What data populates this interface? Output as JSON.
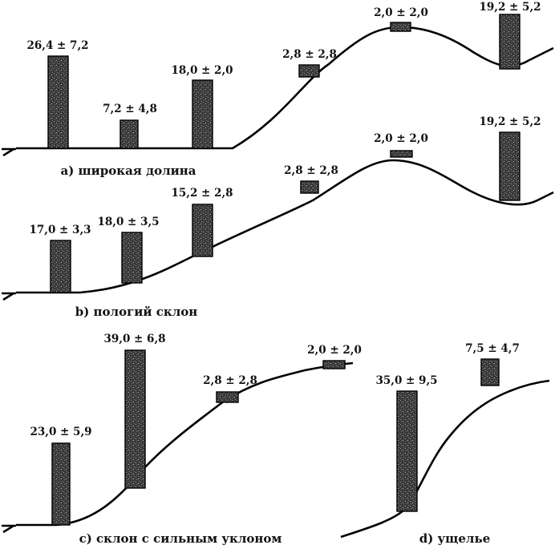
{
  "panels": [
    {
      "id": "a",
      "caption": "a) широкая долина",
      "values": [
        "26,4 ± 7,2",
        "7,2 ± 4,8",
        "18,0 ± 2,0",
        "2,8 ± 2,8",
        "2,0 ± 2,0",
        "19,2 ± 5,2"
      ]
    },
    {
      "id": "b",
      "caption": "b) пологий склон",
      "values": [
        "17,0 ± 3,3",
        "18,0 ± 3,5",
        "15,2 ± 2,8",
        "2,8 ± 2,8",
        "2,0 ± 2,0",
        "19,2 ± 5,2"
      ]
    },
    {
      "id": "c",
      "caption": "c) склон с сильным уклоном",
      "values": [
        "23,0 ± 5,9",
        "39,0 ± 6,8",
        "2,8 ± 2,8",
        "2,0 ± 2,0"
      ]
    },
    {
      "id": "d",
      "caption": "d) ущелье",
      "values": [
        "35,0 ± 9,5",
        "7,5 ± 4,7"
      ]
    }
  ]
}
